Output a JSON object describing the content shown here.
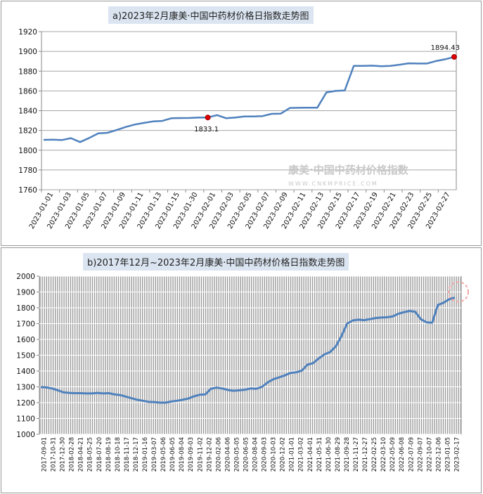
{
  "chart_data": [
    {
      "type": "line",
      "title": "a)2023年2月康美·中国中药材价格日指数走势图",
      "watermark": "康美·中国中药材价格指数",
      "watermark_sub": "WWW.CNKMPRICE.COM",
      "ylim": [
        1760,
        1920
      ],
      "yticks": [
        1760,
        1780,
        1800,
        1820,
        1840,
        1860,
        1880,
        1900,
        1920
      ],
      "x_tick_labels": [
        "2023-01-01",
        "2023-01-03",
        "2023-01-05",
        "2023-01-07",
        "2023-01-09",
        "2023-01-11",
        "2023-01-13",
        "2023-01-15",
        "2023-01-30",
        "2023-02-01",
        "2023-02-03",
        "2023-02-05",
        "2023-02-07",
        "2023-02-09",
        "2023-02-11",
        "2023-02-13",
        "2023-02-15",
        "2023-02-17",
        "2023-02-19",
        "2023-02-21",
        "2023-02-23",
        "2023-02-25",
        "2023-02-27"
      ],
      "series": [
        {
          "name": "康美·中国中药材价格日指数",
          "color": "#4f81bd",
          "values": [
            1810.5,
            1810.6,
            1810.3,
            1812.2,
            1808.2,
            1812.4,
            1817.0,
            1817.6,
            1820.4,
            1823.5,
            1826.0,
            1827.6,
            1829.1,
            1829.6,
            1832.3,
            1832.5,
            1832.6,
            1833.0,
            1833.1,
            1835.5,
            1832.4,
            1833.0,
            1834.1,
            1834.2,
            1834.5,
            1836.8,
            1837.0,
            1842.8,
            1842.9,
            1843.0,
            1843.0,
            1858.5,
            1860.0,
            1860.4,
            1885.3,
            1885.4,
            1885.6,
            1885.0,
            1885.3,
            1886.5,
            1887.9,
            1887.7,
            1887.7,
            1890.2,
            1892.0,
            1894.43
          ]
        }
      ],
      "highlights": [
        {
          "index": 18,
          "label": "1833.1"
        },
        {
          "index": 45,
          "label": "1894.43"
        }
      ]
    },
    {
      "type": "line",
      "title": "b)2017年12月~2023年2月康美·中国中药材价格日指数走势图",
      "ylim": [
        1000,
        2000
      ],
      "yticks": [
        1000,
        1100,
        1200,
        1300,
        1400,
        1500,
        1600,
        1700,
        1800,
        1900,
        2000
      ],
      "x_tick_labels": [
        "2017-09-01",
        "2017-10-31",
        "2017-12-30",
        "2018-02-28",
        "2018-04-21",
        "2018-05-25",
        "2018-07-20",
        "2018-08-19",
        "2018-10-18",
        "2018-11-17",
        "2018-12-17",
        "2019-01-16",
        "2019-03-07",
        "2019-05-06",
        "2019-06-05",
        "2019-08-04",
        "2019-09-03",
        "2019-11-02",
        "2019-12-02",
        "2020-02-06",
        "2020-04-06",
        "2020-05-05",
        "2020-06-05",
        "2020-08-04",
        "2020-09-03",
        "2020-10-03",
        "2020-12-02",
        "2021-01-01",
        "2021-03-02",
        "2021-04-01",
        "2021-05-31",
        "2021-06-30",
        "2021-08-29",
        "2021-09-28",
        "2021-11-27",
        "2021-12-27",
        "2022-02-25",
        "2022-03-10",
        "2022-05-09",
        "2022-06-08",
        "2022-07-09",
        "2022-09-07",
        "2022-10-07",
        "2022-12-06",
        "2023-01-05",
        "2023-02-17"
      ],
      "series": [
        {
          "name": "康美·中国中药材价格日指数",
          "color": "#4f81bd",
          "values": [
            1298,
            1296,
            1290,
            1278,
            1265,
            1262,
            1260,
            1260,
            1258,
            1258,
            1262,
            1258,
            1260,
            1252,
            1248,
            1238,
            1228,
            1218,
            1212,
            1205,
            1204,
            1200,
            1200,
            1207,
            1212,
            1218,
            1226,
            1240,
            1250,
            1252,
            1288,
            1295,
            1290,
            1280,
            1275,
            1278,
            1282,
            1290,
            1288,
            1300,
            1328,
            1348,
            1360,
            1372,
            1388,
            1392,
            1402,
            1440,
            1450,
            1480,
            1505,
            1520,
            1555,
            1620,
            1700,
            1720,
            1725,
            1722,
            1728,
            1735,
            1738,
            1740,
            1745,
            1762,
            1772,
            1780,
            1775,
            1728,
            1708,
            1706,
            1818,
            1832,
            1854,
            1865
          ]
        }
      ],
      "highlight_circle_index": 73
    }
  ]
}
